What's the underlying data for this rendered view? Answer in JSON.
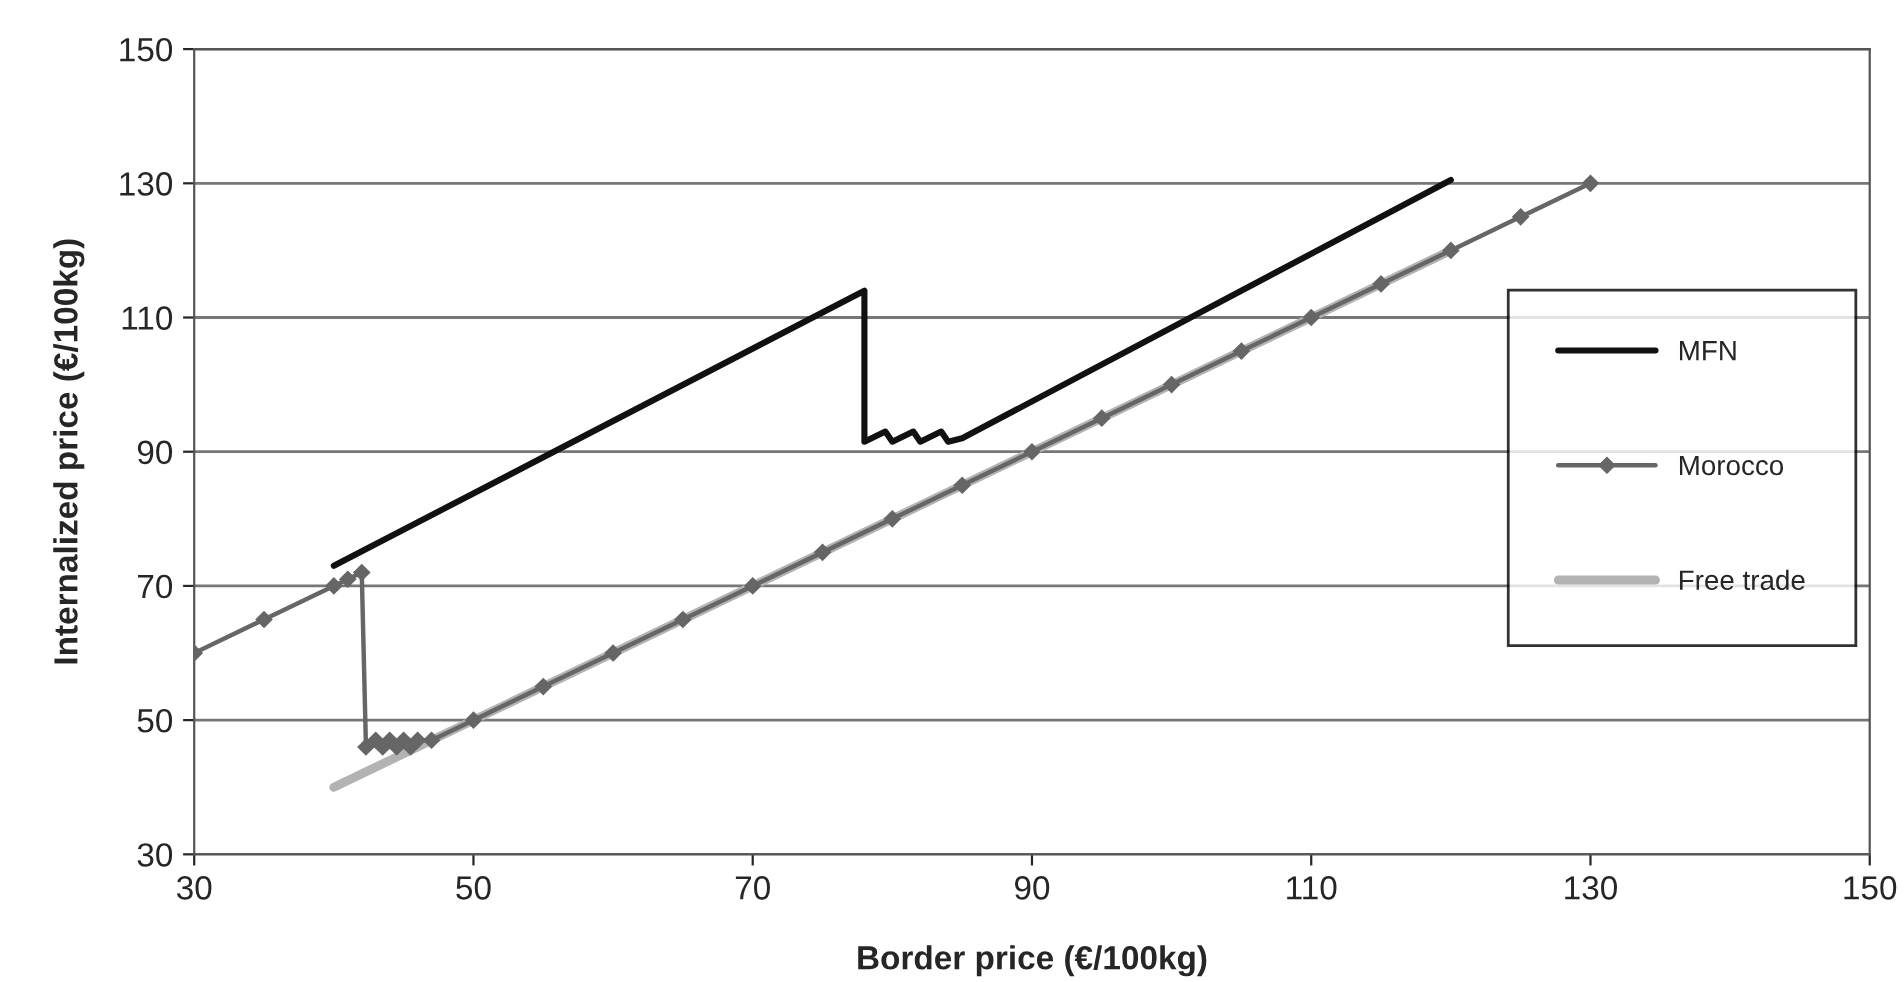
{
  "chart_data": {
    "type": "line",
    "xlabel": "Border price (€/100kg)",
    "ylabel": "Internalized price (€/100kg)",
    "series": [
      {
        "name": "MFN",
        "color": "#111111",
        "marker": "none",
        "x": [
          40,
          78,
          78,
          79.5,
          80,
          81.5,
          82,
          83.5,
          84,
          85,
          120
        ],
        "values": [
          73,
          114,
          91.5,
          93,
          91.5,
          93,
          91.5,
          93,
          91.5,
          92,
          130.5
        ]
      },
      {
        "name": "Morocco",
        "color": "#666666",
        "marker": "diamond",
        "x": [
          30,
          35,
          40,
          41,
          42,
          42.3,
          43,
          43.5,
          44,
          44.5,
          45,
          45.5,
          46,
          47,
          50,
          55,
          60,
          65,
          70,
          75,
          80,
          85,
          90,
          95,
          100,
          105,
          110,
          115,
          120,
          125,
          130
        ],
        "values": [
          60,
          65,
          70,
          71,
          72,
          46,
          47,
          46,
          47,
          46,
          47,
          46,
          47,
          47,
          50,
          55,
          60,
          65,
          70,
          75,
          80,
          85,
          90,
          95,
          100,
          105,
          110,
          115,
          120,
          125,
          130
        ]
      },
      {
        "name": "Free trade",
        "color": "#b3b3b3",
        "marker": "none",
        "x": [
          40,
          120
        ],
        "values": [
          40,
          120
        ]
      }
    ],
    "xlim": [
      30,
      150
    ],
    "xticks": [
      30,
      50,
      70,
      90,
      110,
      130,
      150
    ],
    "ylim": [
      30,
      150
    ],
    "yticks": [
      30,
      50,
      70,
      90,
      110,
      130,
      150
    ],
    "grid": "y",
    "legend": "right",
    "line_style": "solid"
  }
}
